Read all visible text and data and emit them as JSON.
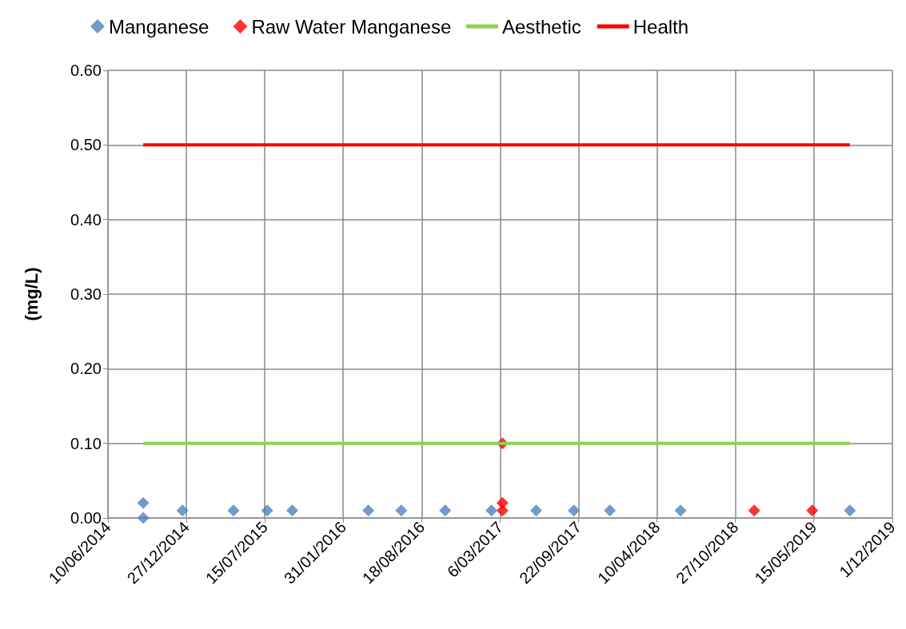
{
  "chart_data": {
    "type": "scatter",
    "ylabel": "(mg/L)",
    "marker": "diamond",
    "grid": true,
    "legend": "top",
    "xlim": [
      "2014-06-10",
      "2019-12-01"
    ],
    "xticks": [
      {
        "value": "2014-06-10",
        "label": "10/06/2014"
      },
      {
        "value": "2014-12-27",
        "label": "27/12/2014"
      },
      {
        "value": "2015-07-15",
        "label": "15/07/2015"
      },
      {
        "value": "2016-01-31",
        "label": "31/01/2016"
      },
      {
        "value": "2016-08-18",
        "label": "18/08/2016"
      },
      {
        "value": "2017-03-06",
        "label": "6/03/2017"
      },
      {
        "value": "2017-09-22",
        "label": "22/09/2017"
      },
      {
        "value": "2018-04-10",
        "label": "10/04/2018"
      },
      {
        "value": "2018-10-27",
        "label": "27/10/2018"
      },
      {
        "value": "2019-05-15",
        "label": "15/05/2019"
      },
      {
        "value": "2019-12-01",
        "label": "1/12/2019"
      }
    ],
    "ylim": [
      0,
      0.6
    ],
    "yticks": [
      {
        "value": 0,
        "label": "0.00"
      },
      {
        "value": 0.1,
        "label": "0.10"
      },
      {
        "value": 0.2,
        "label": "0.20"
      },
      {
        "value": 0.3,
        "label": "0.30"
      },
      {
        "value": 0.4,
        "label": "0.40"
      },
      {
        "value": 0.5,
        "label": "0.50"
      },
      {
        "value": 0.6,
        "label": "0.60"
      }
    ],
    "series": [
      {
        "name": "Manganese",
        "color": "#4f81bd",
        "x": [
          "2014-09-08",
          "2014-09-08",
          "2014-12-17",
          "2015-04-26",
          "2015-07-21",
          "2015-09-23",
          "2016-04-04",
          "2016-06-27",
          "2016-10-17",
          "2017-02-12",
          "2017-06-06",
          "2017-09-10",
          "2017-12-11",
          "2018-06-09",
          "2019-08-15"
        ],
        "values": [
          0.02,
          0,
          0.01,
          0.01,
          0.01,
          0.01,
          0.01,
          0.01,
          0.01,
          0.01,
          0.01,
          0.01,
          0.01,
          0.01,
          0.01
        ]
      },
      {
        "name": "Raw Water Manganese",
        "color": "#ff0000",
        "x": [
          "2017-03-12",
          "2017-03-12",
          "2017-03-12",
          "2018-12-14",
          "2019-05-11"
        ],
        "values": [
          0.1,
          0.02,
          0.01,
          0.01,
          0.01
        ]
      },
      {
        "name": "Aesthetic",
        "type": "line",
        "marker": "none",
        "color": "#92d050",
        "x": [
          "2014-09-08",
          "2019-08-15"
        ],
        "values": [
          0.1,
          0.1
        ]
      },
      {
        "name": "Health",
        "type": "line",
        "marker": "none",
        "color": "#ff0000",
        "x": [
          "2014-09-08",
          "2019-08-15"
        ],
        "values": [
          0.5,
          0.5
        ]
      }
    ]
  }
}
